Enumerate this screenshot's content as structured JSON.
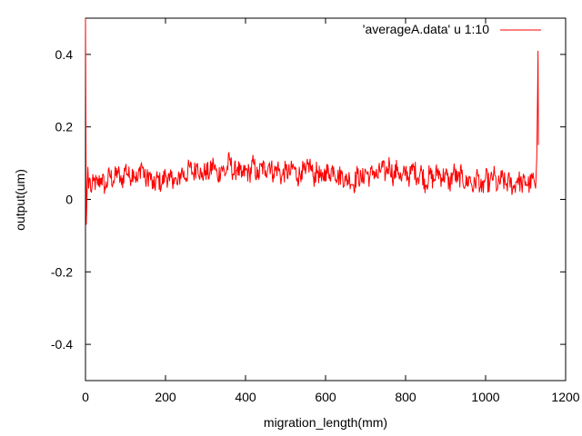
{
  "chart_data": {
    "type": "line",
    "title": "",
    "xlabel": "migration_length(mm)",
    "ylabel": "output(um)",
    "xlim": [
      0,
      1200
    ],
    "ylim": [
      -0.5,
      0.5
    ],
    "xticks": [
      0,
      200,
      400,
      600,
      800,
      1000,
      1200
    ],
    "yticks": [
      -0.4,
      -0.2,
      0,
      0.2,
      0.4
    ],
    "xtick_labels": [
      "0",
      "200",
      "400",
      "600",
      "800",
      "1000",
      "1200"
    ],
    "ytick_labels": [
      "-0.4",
      "-0.2",
      "0",
      "0.2",
      "0.4"
    ],
    "grid": false,
    "legend_position": "top-right",
    "series": [
      {
        "name": "'averageA.data' u 1:10",
        "color": "#ff0000",
        "x": [
          0,
          2,
          4,
          6,
          8,
          10,
          15,
          20,
          30,
          40,
          50,
          60,
          70,
          80,
          90,
          100,
          110,
          120,
          130,
          140,
          150,
          160,
          170,
          180,
          190,
          200,
          210,
          220,
          230,
          240,
          250,
          260,
          270,
          280,
          290,
          300,
          310,
          320,
          330,
          340,
          350,
          360,
          370,
          380,
          390,
          400,
          410,
          420,
          430,
          440,
          450,
          460,
          470,
          480,
          490,
          500,
          510,
          520,
          530,
          540,
          550,
          560,
          570,
          580,
          590,
          600,
          610,
          620,
          630,
          640,
          650,
          660,
          670,
          680,
          690,
          700,
          710,
          720,
          730,
          740,
          750,
          760,
          770,
          780,
          790,
          800,
          810,
          820,
          830,
          840,
          850,
          860,
          870,
          880,
          890,
          900,
          910,
          920,
          930,
          940,
          950,
          960,
          970,
          980,
          990,
          1000,
          1010,
          1020,
          1030,
          1040,
          1050,
          1060,
          1070,
          1080,
          1090,
          1100,
          1110,
          1120,
          1125,
          1128,
          1130,
          1131,
          1132
        ],
        "y": [
          0.5,
          -0.07,
          0.02,
          0.09,
          0.03,
          0.06,
          0.02,
          0.05,
          0.04,
          0.06,
          0.03,
          0.07,
          0.05,
          0.08,
          0.04,
          0.09,
          0.06,
          0.08,
          0.05,
          0.1,
          0.05,
          0.07,
          0.03,
          0.06,
          0.04,
          0.07,
          0.05,
          0.06,
          0.04,
          0.08,
          0.06,
          0.09,
          0.07,
          0.1,
          0.06,
          0.08,
          0.07,
          0.1,
          0.06,
          0.09,
          0.07,
          0.11,
          0.07,
          0.09,
          0.06,
          0.08,
          0.07,
          0.1,
          0.06,
          0.09,
          0.08,
          0.1,
          0.07,
          0.09,
          0.06,
          0.08,
          0.07,
          0.09,
          0.06,
          0.08,
          0.07,
          0.1,
          0.06,
          0.08,
          0.05,
          0.08,
          0.07,
          0.09,
          0.06,
          0.07,
          0.05,
          0.06,
          0.04,
          0.07,
          0.05,
          0.08,
          0.06,
          0.08,
          0.06,
          0.09,
          0.07,
          0.1,
          0.06,
          0.09,
          0.05,
          0.08,
          0.06,
          0.09,
          0.06,
          0.08,
          0.04,
          0.07,
          0.05,
          0.08,
          0.06,
          0.07,
          0.04,
          0.08,
          0.05,
          0.07,
          0.04,
          0.06,
          0.03,
          0.07,
          0.02,
          0.06,
          0.04,
          0.07,
          0.03,
          0.06,
          0.04,
          0.05,
          0.03,
          0.06,
          0.04,
          0.05,
          0.04,
          0.06,
          0.03,
          0.12,
          0.3,
          0.41,
          0.15
        ]
      }
    ]
  }
}
